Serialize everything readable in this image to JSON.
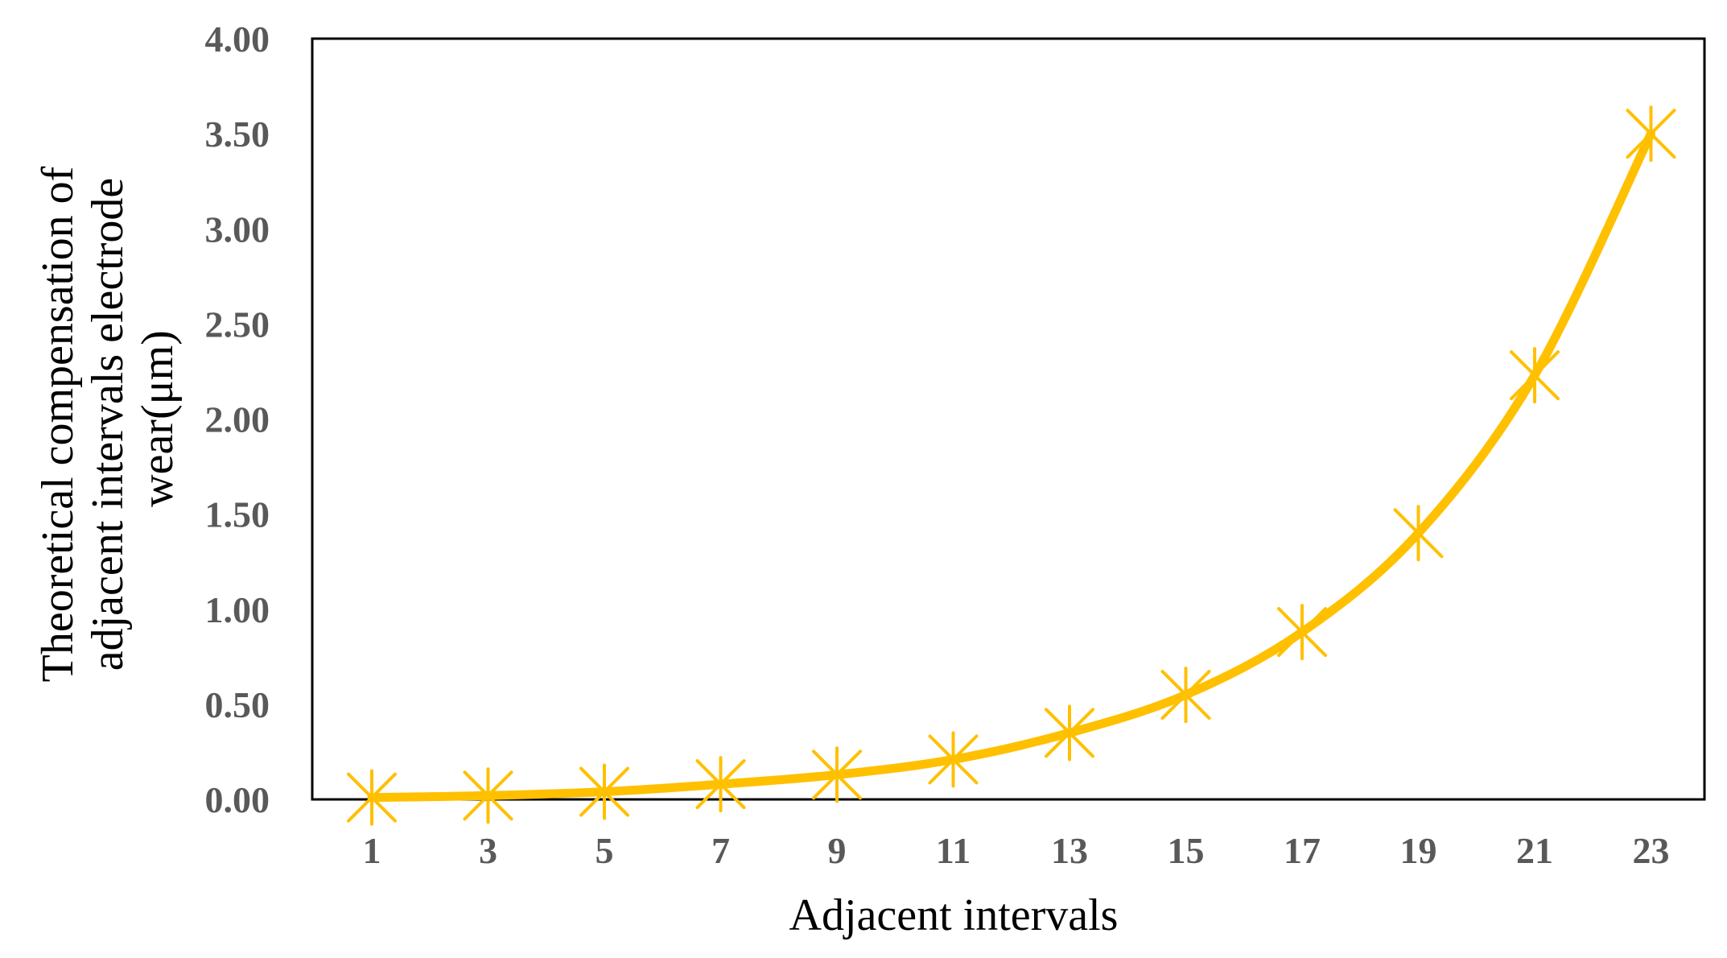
{
  "chart_data": {
    "type": "line",
    "title": "",
    "xlabel": "Adjacent intervals",
    "ylabel_lines": [
      "Theoretical compensation of",
      "adjacent intervals electrode",
      "wear(μm)"
    ],
    "categories": [
      "1",
      "3",
      "5",
      "7",
      "9",
      "11",
      "13",
      "15",
      "17",
      "19",
      "21",
      "23"
    ],
    "series": [
      {
        "values": [
          0.01,
          0.02,
          0.04,
          0.08,
          0.13,
          0.21,
          0.35,
          0.55,
          0.88,
          1.4,
          2.23,
          3.5
        ]
      }
    ],
    "ylim": [
      0,
      4
    ],
    "yticks": [
      "0.00",
      "0.50",
      "1.00",
      "1.50",
      "2.00",
      "2.50",
      "3.00",
      "3.50",
      "4.00"
    ],
    "grid": false,
    "legend": "none",
    "marker": "asterisk",
    "colors": {
      "series": "#FFC000",
      "frame": "#000000",
      "tick_text": "#595959"
    }
  }
}
